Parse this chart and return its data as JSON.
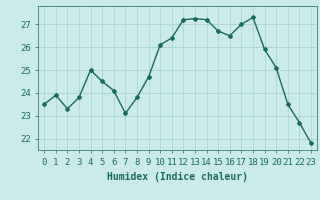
{
  "x": [
    0,
    1,
    2,
    3,
    4,
    5,
    6,
    7,
    8,
    9,
    10,
    11,
    12,
    13,
    14,
    15,
    16,
    17,
    18,
    19,
    20,
    21,
    22,
    23
  ],
  "y": [
    23.5,
    23.9,
    23.3,
    23.8,
    25.0,
    24.5,
    24.1,
    23.1,
    23.8,
    24.7,
    26.1,
    26.4,
    27.2,
    27.25,
    27.2,
    26.7,
    26.5,
    27.0,
    27.3,
    25.9,
    25.1,
    23.5,
    22.7,
    21.8
  ],
  "line_color": "#1a6b5a",
  "marker": "D",
  "markersize": 2.0,
  "linewidth": 1.0,
  "bg_color": "#cceae7",
  "grid_color": "#aad4d0",
  "xlabel": "Humidex (Indice chaleur)",
  "xlabel_fontsize": 7,
  "tick_fontsize": 6.5,
  "ylim": [
    21.5,
    27.8
  ],
  "yticks": [
    22,
    23,
    24,
    25,
    26,
    27
  ],
  "xticks": [
    0,
    1,
    2,
    3,
    4,
    5,
    6,
    7,
    8,
    9,
    10,
    11,
    12,
    13,
    14,
    15,
    16,
    17,
    18,
    19,
    20,
    21,
    22,
    23
  ]
}
